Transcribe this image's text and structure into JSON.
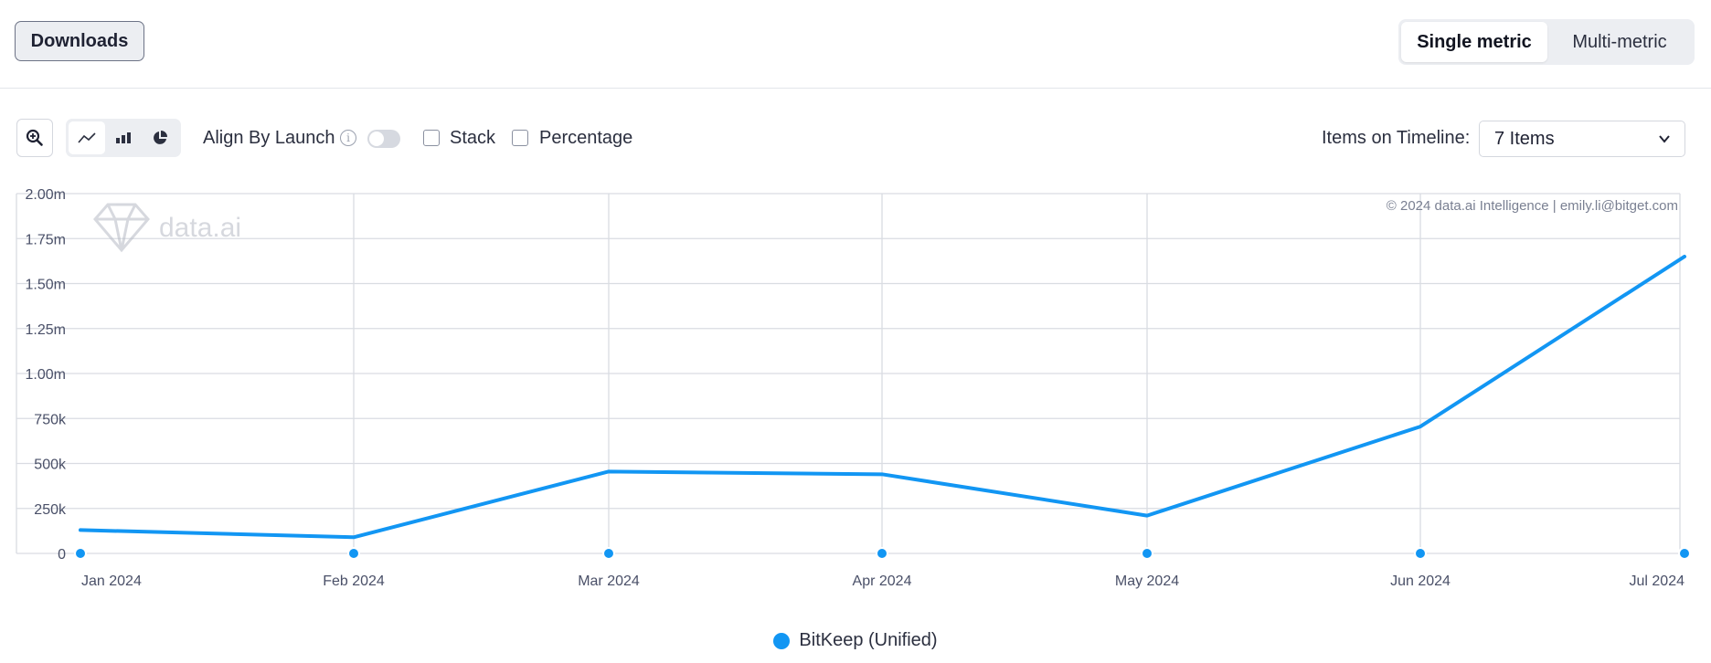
{
  "header": {
    "downloads_label": "Downloads",
    "metric_options": [
      "Single metric",
      "Multi-metric"
    ],
    "metric_selected": "Single metric"
  },
  "toolbar": {
    "zoom_icon": "zoom-in-icon",
    "chart_type_icons": [
      "line-chart-icon",
      "bar-chart-icon",
      "pie-chart-icon"
    ],
    "align_label": "Align By Launch",
    "align_enabled": false,
    "stack_label": "Stack",
    "stack_checked": false,
    "percentage_label": "Percentage",
    "percentage_checked": false,
    "items_label": "Items on Timeline:",
    "items_value": "7 Items"
  },
  "watermark": {
    "brand": "data.ai",
    "copyright": "© 2024 data.ai Intelligence | emily.li@bitget.com"
  },
  "colors": {
    "series": "#1296f3",
    "grid": "#d9dce2",
    "axis_text": "#4a5068"
  },
  "chart_data": {
    "type": "line",
    "title": "",
    "xlabel": "",
    "ylabel": "",
    "categories": [
      "Jan 2024",
      "Feb 2024",
      "Mar 2024",
      "Apr 2024",
      "May 2024",
      "Jun 2024",
      "Jul 2024"
    ],
    "ylim": [
      0,
      2000000
    ],
    "yticks": [
      {
        "value": 0,
        "label": "0"
      },
      {
        "value": 250000,
        "label": "250k"
      },
      {
        "value": 500000,
        "label": "500k"
      },
      {
        "value": 750000,
        "label": "750k"
      },
      {
        "value": 1000000,
        "label": "1.00m"
      },
      {
        "value": 1250000,
        "label": "1.25m"
      },
      {
        "value": 1500000,
        "label": "1.50m"
      },
      {
        "value": 1750000,
        "label": "1.75m"
      },
      {
        "value": 2000000,
        "label": "2.00m"
      }
    ],
    "grid": true,
    "legend_position": "bottom-center",
    "series": [
      {
        "name": "BitKeep (Unified)",
        "values": [
          130000,
          90000,
          455000,
          440000,
          210000,
          705000,
          1650000
        ]
      }
    ]
  }
}
